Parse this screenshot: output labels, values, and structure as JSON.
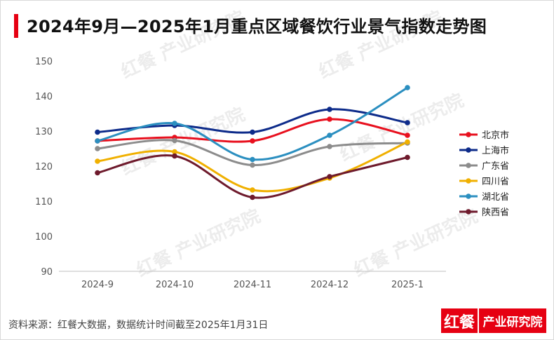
{
  "title": "2024年9月—2025年1月重点区域餐饮行业景气指数走势图",
  "source": "资料来源：红餐大数据，数据统计时间截至2025年1月31日",
  "brand": {
    "logo": "红餐",
    "text": "产业研究院"
  },
  "watermark": {
    "logo": "红餐",
    "text": "产业研究院"
  },
  "chart_data": {
    "type": "line",
    "categories": [
      "2024-9",
      "2024-10",
      "2024-11",
      "2024-12",
      "2025-1"
    ],
    "ylim": [
      90,
      150
    ],
    "yticks": [
      90,
      100,
      110,
      120,
      130,
      140,
      150
    ],
    "grid": false,
    "legend": "right",
    "series": [
      {
        "name": "北京市",
        "color": "#e8101e",
        "values": [
          127.2,
          128.2,
          127.2,
          133.4,
          128.8
        ]
      },
      {
        "name": "上海市",
        "color": "#0d2b8a",
        "values": [
          129.7,
          131.6,
          129.7,
          136.2,
          132.4
        ]
      },
      {
        "name": "广东省",
        "color": "#8c8c8c",
        "values": [
          125.0,
          127.3,
          120.3,
          125.6,
          126.6
        ]
      },
      {
        "name": "四川省",
        "color": "#f0b000",
        "values": [
          121.4,
          124.1,
          113.2,
          116.6,
          126.9
        ]
      },
      {
        "name": "湖北省",
        "color": "#2b8fc0",
        "values": [
          127.2,
          132.2,
          121.9,
          128.8,
          142.4
        ]
      },
      {
        "name": "陕西省",
        "color": "#6e1a2c",
        "values": [
          118.1,
          122.9,
          111.1,
          117.0,
          122.5
        ]
      }
    ]
  }
}
